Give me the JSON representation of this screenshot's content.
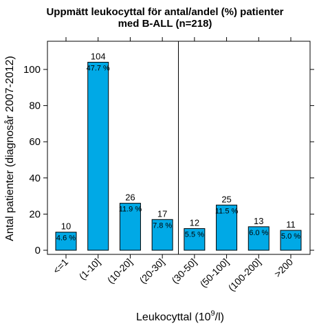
{
  "chart_data": {
    "type": "bar",
    "title": [
      "Uppmätt leukocyttal för antal/andel (%) patienter",
      "med B-ALL (n=218)"
    ],
    "ylabel": "Antal patienter (diagnosår 2007-2012)",
    "xlabel": {
      "prefix": "Leukocyttal (10",
      "superscript": "9",
      "suffix": "/l)"
    },
    "categories": [
      "<=1",
      "(1-10]",
      "(10-20]",
      "(20-30]",
      "(30-50]",
      "(50-100]",
      "(100-200]",
      ">200"
    ],
    "values": [
      10,
      104,
      26,
      17,
      12,
      25,
      13,
      11
    ],
    "percent_labels": [
      "4.6 %",
      "47.7 %",
      "11.9 %",
      "7.8 %",
      "5.5 %",
      "11.5 %",
      "6.0 %",
      "5.0 %"
    ],
    "count_labels": [
      "10",
      "104",
      "26",
      "17",
      "12",
      "25",
      "13",
      "11"
    ],
    "yticks": [
      0,
      20,
      40,
      60,
      80,
      100
    ],
    "ylim": [
      -3,
      114
    ],
    "divider_after_category": "(20-30]",
    "grid": false,
    "bar_color": "#00a9e6"
  }
}
